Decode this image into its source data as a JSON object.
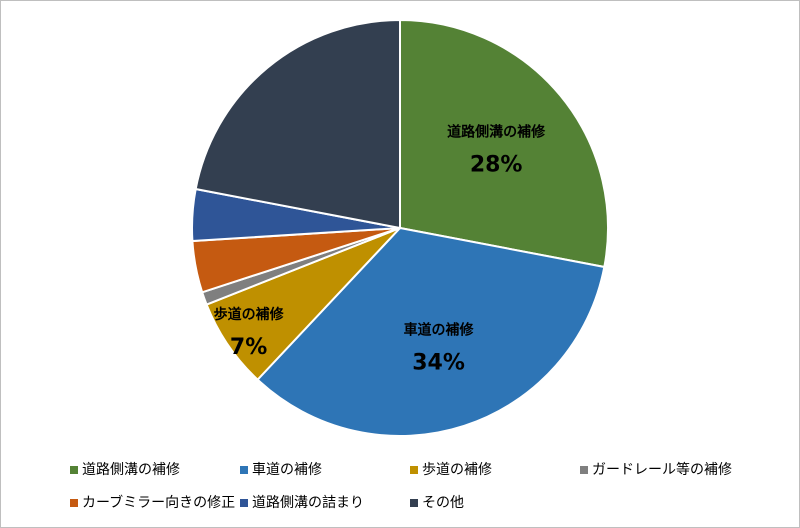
{
  "chart_data": {
    "type": "pie",
    "categories": [
      "道路側溝の補修",
      "車道の補修",
      "歩道の補修",
      "ガードレール等の補修",
      "カーブミラー向きの修正",
      "道路側溝の詰まり",
      "その他"
    ],
    "values": [
      28,
      34,
      7,
      1,
      4,
      4,
      22
    ],
    "value_labels": [
      "28%",
      "34%",
      "7%",
      null,
      null,
      null,
      null
    ],
    "colors": [
      "#548235",
      "#2e75b6",
      "#bf9000",
      "#7f7f7f",
      "#c55a11",
      "#2f5597",
      "#333f50"
    ],
    "legend": "bottom"
  }
}
